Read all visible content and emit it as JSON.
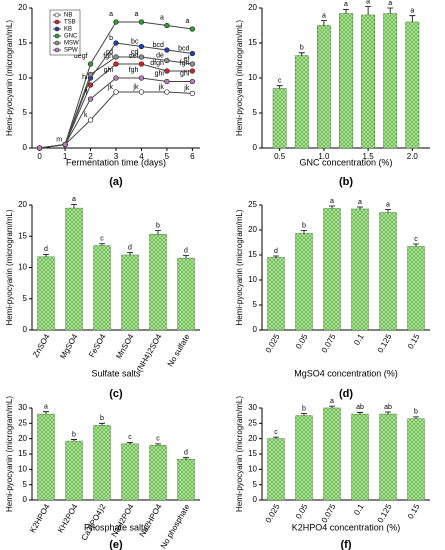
{
  "chart_data": [
    {
      "type": "line",
      "panel": "(a)",
      "xlabel": "Fermentation time (days)",
      "ylabel": "Hemi-pyocyanin (microgram/mL)",
      "x": [
        0,
        1,
        2,
        3,
        4,
        5,
        6
      ],
      "xlim": [
        -0.3,
        6.3
      ],
      "xticks": [
        0,
        1,
        2,
        3,
        4,
        5,
        6
      ],
      "ylim": [
        0,
        20
      ],
      "yticks": [
        0,
        5,
        10,
        15,
        20
      ],
      "legend": "upper left",
      "series": [
        {
          "name": "NB",
          "color": "#ffffff",
          "values": [
            0,
            0.5,
            4,
            8,
            8,
            8,
            7.8
          ],
          "letters": [
            null,
            "m",
            "k",
            "jk",
            "jk",
            "jk",
            "jk"
          ]
        },
        {
          "name": "TSB",
          "color": "#e02020",
          "values": [
            0,
            0.5,
            9,
            12,
            12,
            11,
            11
          ],
          "letters": [
            null,
            null,
            "hi",
            "fgh",
            "def",
            "dfgh",
            "fgh"
          ]
        },
        {
          "name": "KB",
          "color": "#2040c0",
          "values": [
            0,
            0.5,
            10,
            15,
            14.5,
            14,
            13.5
          ],
          "letters": [
            null,
            null,
            null,
            "b",
            "bc",
            "bcd",
            "bcd"
          ]
        },
        {
          "name": "GNC",
          "color": "#30a030",
          "values": [
            0,
            0.5,
            12,
            18,
            18,
            17.5,
            17
          ],
          "letters": [
            null,
            null,
            "degf",
            "a",
            "a",
            "a",
            "a"
          ]
        },
        {
          "name": "MSW",
          "color": "#909090",
          "values": [
            0,
            0.5,
            10.5,
            13,
            13,
            12.5,
            12
          ],
          "letters": [
            null,
            null,
            null,
            "cd",
            "cd",
            "de",
            "ef"
          ]
        },
        {
          "name": "SPW",
          "color": "#c080c0",
          "values": [
            0,
            0.5,
            7,
            10,
            10,
            9.5,
            9.5
          ],
          "letters": [
            null,
            null,
            "ij",
            "ghi",
            "fgh",
            "ghi",
            "ghi"
          ]
        }
      ]
    },
    {
      "type": "bar",
      "panel": "(b)",
      "xlabel": "GNC concentration (%)",
      "ylabel": "Hemi-pyocyanin (microgram/mL)",
      "x": [
        0.5,
        0.75,
        1.0,
        1.25,
        1.5,
        1.75,
        2.0
      ],
      "xlim": [
        0.3,
        2.2
      ],
      "xticks": [
        0.5,
        {
          "value": 1,
          "label": "1.0"
        },
        1.5,
        {
          "value": 2,
          "label": "2.0"
        }
      ],
      "values": [
        8.5,
        13.2,
        17.5,
        19.2,
        19,
        19.2,
        18
      ],
      "errors": [
        0.4,
        0.4,
        0.7,
        0.6,
        1.2,
        0.8,
        0.9
      ],
      "letters": [
        "c",
        "b",
        "a",
        "a",
        "a",
        "a",
        "a"
      ],
      "color": "#6abf4b",
      "ylim": [
        0,
        20
      ],
      "yticks": [
        0,
        5,
        10,
        15,
        20
      ]
    },
    {
      "type": "bar",
      "panel": "(c)",
      "xlabel": "Sulfate salts",
      "ylabel": "Hemi-pyocyanin (microgram/mL)",
      "categories": [
        "ZnSO4",
        "MgSO4",
        "FeSO4",
        "MnSO4",
        "(NH4)2SO4",
        "No sulfate"
      ],
      "values": [
        11.7,
        19.5,
        13.5,
        12,
        15.3,
        11.5
      ],
      "errors": [
        0.4,
        0.6,
        0.3,
        0.4,
        0.6,
        0.4
      ],
      "letters": [
        "d",
        "a",
        "c",
        "d",
        "b",
        "d"
      ],
      "color": "#6abf4b",
      "ylim": [
        0,
        20
      ],
      "yticks": [
        0,
        5,
        10,
        15,
        20
      ]
    },
    {
      "type": "bar",
      "panel": "(d)",
      "xlabel": "MgSO4 concentration (%)",
      "ylabel": "Hemi-pyocyanin (microgram/mL)",
      "categories": [
        "0.025",
        "0.05",
        "0.075",
        "0.1",
        "0.125",
        "0.15"
      ],
      "values": [
        14.5,
        19.3,
        24.3,
        24.2,
        23.5,
        16.7
      ],
      "errors": [
        0.3,
        0.6,
        0.5,
        0.4,
        0.6,
        0.5
      ],
      "letters": [
        "d",
        "b",
        "a",
        "a",
        "a",
        "c"
      ],
      "color": "#6abf4b",
      "ylim": [
        0,
        25
      ],
      "yticks": [
        0,
        5,
        10,
        15,
        20,
        25
      ]
    },
    {
      "type": "bar",
      "panel": "(e)",
      "xlabel": "Phosphate salts",
      "ylabel": "Hemi-pyocyanin (microgram/mL)",
      "categories": [
        "K2HPO4",
        "KH2PO4",
        "Ca3(PO4)2",
        "NaH2PO4",
        "Na2HPO4",
        "No phosphate"
      ],
      "values": [
        28,
        19.2,
        24.3,
        18.3,
        17.8,
        13.3
      ],
      "errors": [
        0.8,
        0.5,
        0.7,
        0.5,
        0.5,
        0.5
      ],
      "letters": [
        "a",
        "b",
        "b",
        "c",
        "c",
        "d"
      ],
      "color": "#6abf4b",
      "ylim": [
        0,
        30
      ],
      "yticks": [
        0,
        5,
        10,
        15,
        20,
        25,
        30
      ]
    },
    {
      "type": "bar",
      "panel": "(f)",
      "xlabel": "K2HPO4 concentration (%)",
      "ylabel": "Hemi-pyocyanin (microgram/mL)",
      "categories": [
        "0.025",
        "0.05",
        "0.075",
        "0.1",
        "0.125",
        "0.15"
      ],
      "values": [
        20,
        27.5,
        30,
        28,
        28,
        26.5
      ],
      "errors": [
        0.5,
        0.7,
        0.6,
        0.6,
        0.7,
        0.6
      ],
      "letters": [
        "c",
        "b",
        "a",
        "ab",
        "ab",
        "b"
      ],
      "color": "#6abf4b",
      "ylim": [
        0,
        30
      ],
      "yticks": [
        0,
        5,
        10,
        15,
        20,
        25,
        30
      ]
    }
  ]
}
